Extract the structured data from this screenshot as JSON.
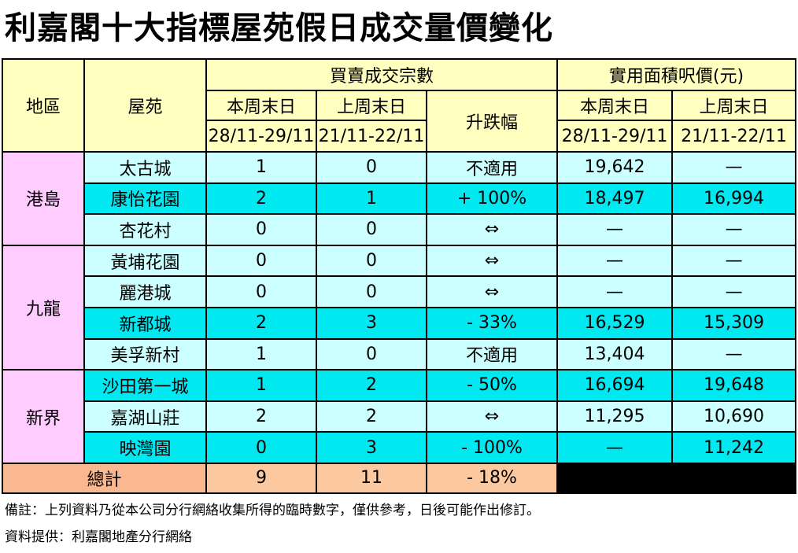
{
  "title": "利嘉閣十大指標屋苑假日成交量價變化",
  "headers": {
    "district": "地區",
    "estate": "屋苑",
    "transactions_group": "買賣成交宗數",
    "price_group": "實用面積呎價(元)",
    "this_weekend": "本周末日",
    "last_weekend": "上周末日",
    "change": "升跌幅",
    "this_dates": "28/11-29/11",
    "last_dates": "21/11-22/11"
  },
  "regions": [
    {
      "name": "港島",
      "rows": 3
    },
    {
      "name": "九龍",
      "rows": 4
    },
    {
      "name": "新界",
      "rows": 3
    }
  ],
  "rows": [
    {
      "estate": "太古城",
      "this": "1",
      "last": "0",
      "change": "不適用",
      "price_this": "19,642",
      "price_last": "—",
      "shade": "light"
    },
    {
      "estate": "康怡花園",
      "this": "2",
      "last": "1",
      "change": "+ 100%",
      "price_this": "18,497",
      "price_last": "16,994",
      "shade": "cyan"
    },
    {
      "estate": "杏花村",
      "this": "0",
      "last": "0",
      "change": "⇔",
      "price_this": "—",
      "price_last": "—",
      "shade": "light"
    },
    {
      "estate": "黃埔花園",
      "this": "0",
      "last": "0",
      "change": "⇔",
      "price_this": "—",
      "price_last": "—",
      "shade": "light"
    },
    {
      "estate": "麗港城",
      "this": "0",
      "last": "0",
      "change": "⇔",
      "price_this": "—",
      "price_last": "—",
      "shade": "light"
    },
    {
      "estate": "新都城",
      "this": "2",
      "last": "3",
      "change": "- 33%",
      "price_this": "16,529",
      "price_last": "15,309",
      "shade": "cyan"
    },
    {
      "estate": "美孚新村",
      "this": "1",
      "last": "0",
      "change": "不適用",
      "price_this": "13,404",
      "price_last": "—",
      "shade": "light"
    },
    {
      "estate": "沙田第一城",
      "this": "1",
      "last": "2",
      "change": "- 50%",
      "price_this": "16,694",
      "price_last": "19,648",
      "shade": "cyan"
    },
    {
      "estate": "嘉湖山莊",
      "this": "2",
      "last": "2",
      "change": "⇔",
      "price_this": "11,295",
      "price_last": "10,690",
      "shade": "light"
    },
    {
      "estate": "映灣園",
      "this": "0",
      "last": "3",
      "change": "- 100%",
      "price_this": "—",
      "price_last": "11,242",
      "shade": "cyan"
    }
  ],
  "total": {
    "label": "總計",
    "this": "9",
    "last": "11",
    "change": "- 18%"
  },
  "notes": {
    "remark": "備註：上列資料乃從本公司分行網絡收集所得的臨時數字，僅供參考，日後可能作出修訂。",
    "source": "資料提供：利嘉閣地產分行網絡"
  }
}
